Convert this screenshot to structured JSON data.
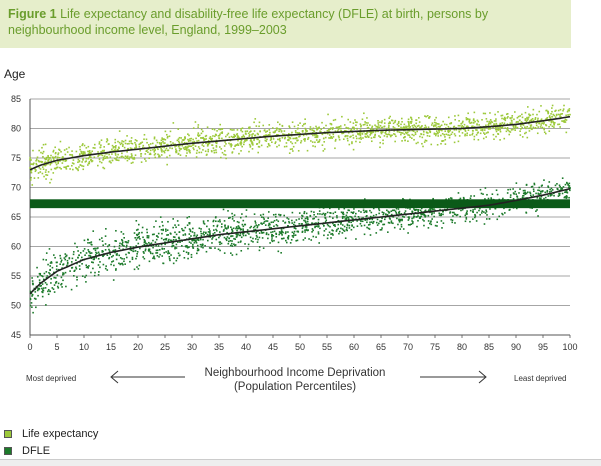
{
  "caption": {
    "figure": "Figure 1",
    "text": "Life expectancy and disability-free life expectancy (DFLE) at birth, persons by neighbourhood income level, England, 1999–2003"
  },
  "colors": {
    "life_expectancy": "#9cc93a",
    "dfle": "#1c7a2a",
    "trend": "#222222",
    "band": "#0b5a18",
    "grid": "#888888"
  },
  "chart_data": {
    "type": "scatter",
    "title": "Life expectancy and disability-free life expectancy (DFLE) at birth, persons by neighbourhood income level, England, 1999–2003",
    "ylabel": "Age",
    "xlabel": "Neighbourhood Income Deprivation (Population Percentiles)",
    "xlabel_line1": "Neighbourhood Income Deprivation",
    "xlabel_line2": "(Population Percentiles)",
    "xlim": [
      0,
      100
    ],
    "ylim": [
      45,
      85
    ],
    "xticks": [
      0,
      5,
      10,
      15,
      20,
      25,
      30,
      35,
      40,
      45,
      50,
      55,
      60,
      65,
      70,
      75,
      80,
      85,
      90,
      95,
      100
    ],
    "yticks": [
      45,
      50,
      55,
      60,
      65,
      70,
      75,
      80,
      85
    ],
    "grid": "horizontal",
    "legend_position": "bottom-left",
    "annotations": {
      "left": "Most deprived",
      "right": "Least deprived"
    },
    "band": [
      66.5,
      68
    ],
    "series": [
      {
        "name": "Life expectancy",
        "trend": {
          "x": [
            0,
            2,
            5,
            10,
            15,
            20,
            25,
            30,
            35,
            40,
            45,
            50,
            55,
            60,
            65,
            70,
            75,
            80,
            85,
            90,
            95,
            100
          ],
          "y": [
            73.0,
            73.8,
            74.6,
            75.4,
            76.0,
            76.5,
            77.0,
            77.5,
            77.9,
            78.3,
            78.7,
            79.0,
            79.3,
            79.5,
            79.7,
            79.8,
            79.9,
            80.0,
            80.3,
            80.7,
            81.3,
            82.0
          ]
        },
        "spread": 1.4
      },
      {
        "name": "DFLE",
        "trend": {
          "x": [
            0,
            2,
            5,
            10,
            15,
            20,
            25,
            30,
            35,
            40,
            45,
            50,
            55,
            60,
            65,
            70,
            75,
            80,
            85,
            90,
            95,
            100
          ],
          "y": [
            52.0,
            53.8,
            55.8,
            57.8,
            59.0,
            59.9,
            60.6,
            61.3,
            62.0,
            62.5,
            63.0,
            63.5,
            64.0,
            64.5,
            65.0,
            65.5,
            66.0,
            66.5,
            67.0,
            67.8,
            68.7,
            69.8
          ]
        },
        "spread": 1.6
      }
    ]
  }
}
